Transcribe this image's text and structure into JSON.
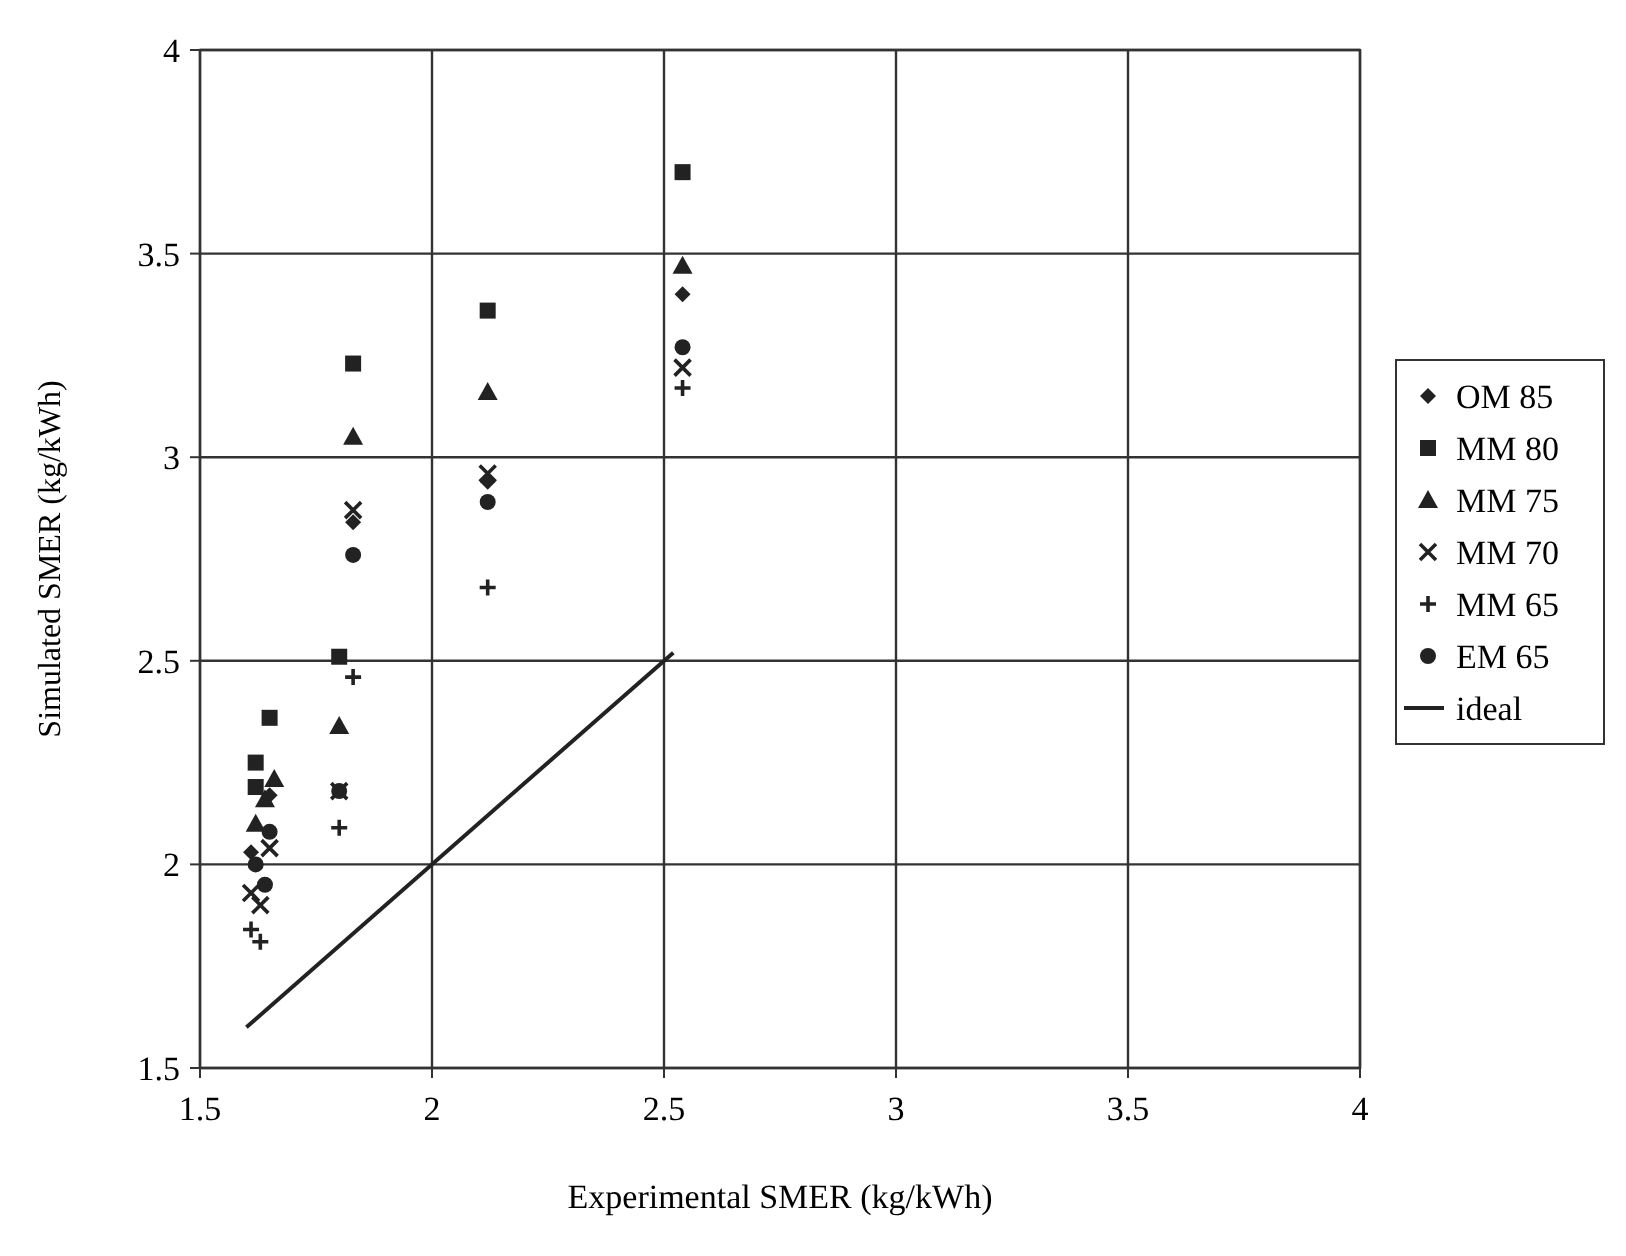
{
  "chart_data": {
    "type": "scatter",
    "xlabel": "Experimental SMER (kg/kWh)",
    "ylabel": "Simulated SMER (kg/kWh)",
    "xlim": [
      1.5,
      4
    ],
    "ylim": [
      1.5,
      4
    ],
    "xticks": [
      1.5,
      2,
      2.5,
      3,
      3.5,
      4
    ],
    "yticks": [
      1.5,
      2,
      2.5,
      3,
      3.5,
      4
    ],
    "grid": true,
    "legend": "right",
    "series": [
      {
        "name": "OM 85",
        "color": "#222222",
        "marker": "diamond",
        "x": [
          1.61,
          1.63,
          1.65,
          1.8,
          1.83,
          2.12,
          2.54
        ],
        "values": [
          2.03,
          null,
          2.17,
          null,
          2.84,
          2.94,
          3.4
        ]
      },
      {
        "name": "MM 80",
        "color": "#222222",
        "marker": "square",
        "x": [
          1.62,
          1.62,
          1.65,
          1.8,
          1.83,
          2.12,
          2.54
        ],
        "values": [
          2.25,
          2.19,
          2.36,
          2.51,
          3.23,
          3.36,
          3.7
        ]
      },
      {
        "name": "MM 75",
        "color": "#222222",
        "marker": "triangle",
        "x": [
          1.62,
          1.64,
          1.66,
          1.8,
          1.83,
          2.12,
          2.54
        ],
        "values": [
          2.1,
          2.16,
          2.21,
          2.34,
          3.05,
          3.16,
          3.47
        ]
      },
      {
        "name": "MM 70",
        "color": "#222222",
        "marker": "x",
        "x": [
          1.61,
          1.63,
          1.65,
          1.8,
          1.83,
          2.12,
          2.54
        ],
        "values": [
          1.93,
          1.9,
          2.04,
          2.18,
          2.87,
          2.96,
          3.22
        ]
      },
      {
        "name": "MM 65",
        "color": "#222222",
        "marker": "plus",
        "x": [
          1.61,
          1.63,
          1.64,
          1.8,
          1.83,
          2.12,
          2.54
        ],
        "values": [
          1.84,
          1.81,
          null,
          2.09,
          2.46,
          2.68,
          3.17
        ]
      },
      {
        "name": "EM 65",
        "color": "#222222",
        "marker": "circle",
        "x": [
          1.62,
          1.64,
          1.65,
          1.8,
          1.83,
          2.12,
          2.54
        ],
        "values": [
          2.0,
          1.95,
          2.08,
          2.18,
          2.76,
          2.89,
          3.27
        ]
      },
      {
        "name": "ideal",
        "type": "line",
        "color": "#222222",
        "marker": "none",
        "line_style": "solid",
        "x": [
          1.6,
          2.52
        ],
        "values": [
          1.6,
          2.52
        ]
      }
    ]
  }
}
